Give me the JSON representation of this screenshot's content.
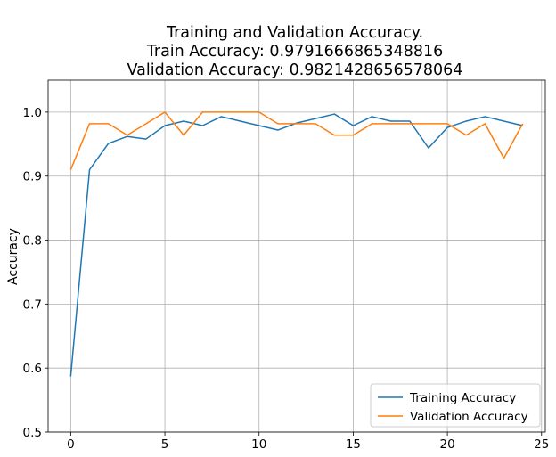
{
  "chart_data": {
    "type": "line",
    "title_lines": [
      "Training and Validation Accuracy.",
      "Train Accuracy: 0.9791666865348816",
      "Validation Accuracy: 0.9821428656578064"
    ],
    "xlabel": "",
    "ylabel": "Accuracy",
    "xlim": [
      -1.2,
      25.2
    ],
    "ylim": [
      0.5,
      1.05
    ],
    "xticks": [
      "0",
      "5",
      "10",
      "15",
      "20",
      "25"
    ],
    "yticks": [
      "0.5",
      "0.6",
      "0.7",
      "0.8",
      "0.9",
      "1.0"
    ],
    "grid": true,
    "legend_position": "lower-right",
    "x": [
      0,
      1,
      2,
      3,
      4,
      5,
      6,
      7,
      8,
      9,
      10,
      11,
      12,
      13,
      14,
      15,
      16,
      17,
      18,
      19,
      20,
      21,
      22,
      23,
      24
    ],
    "series": [
      {
        "name": "Training Accuracy",
        "color": "#1f77b4",
        "values": [
          0.587,
          0.91,
          0.951,
          0.962,
          0.958,
          0.979,
          0.986,
          0.979,
          0.993,
          0.986,
          0.979,
          0.972,
          0.983,
          0.99,
          0.997,
          0.979,
          0.993,
          0.986,
          0.986,
          0.944,
          0.976,
          0.986,
          0.993,
          0.986,
          0.979
        ]
      },
      {
        "name": "Validation Accuracy",
        "color": "#ff7f0e",
        "values": [
          0.91,
          0.982,
          0.982,
          0.964,
          0.982,
          1.0,
          0.964,
          1.0,
          1.0,
          1.0,
          1.0,
          0.982,
          0.982,
          0.982,
          0.964,
          0.964,
          0.982,
          0.982,
          0.982,
          0.982,
          0.982,
          0.964,
          0.982,
          0.928,
          0.982
        ]
      }
    ]
  }
}
